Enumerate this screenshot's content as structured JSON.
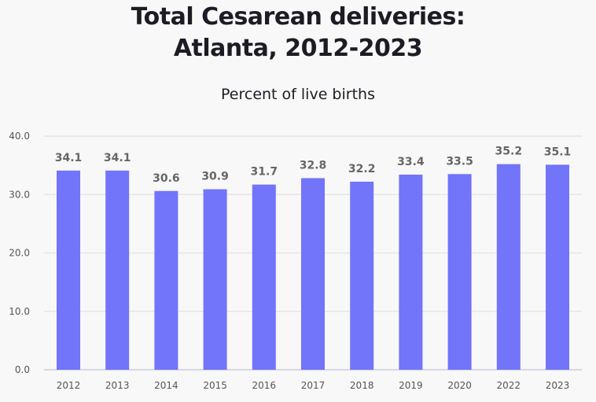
{
  "chart_data": {
    "type": "bar",
    "title_line1": "Total Cesarean deliveries:",
    "title_line2": "Atlanta, 2012-2023",
    "subtitle": "Percent of live births",
    "xlabel": "",
    "ylabel": "",
    "categories": [
      "2012",
      "2013",
      "2014",
      "2015",
      "2016",
      "2017",
      "2018",
      "2019",
      "2020",
      "2022",
      "2023"
    ],
    "values": [
      34.1,
      34.1,
      30.6,
      30.9,
      31.7,
      32.8,
      32.2,
      33.4,
      33.5,
      35.2,
      35.1
    ],
    "data_labels": [
      "34.1",
      "34.1",
      "30.6",
      "30.9",
      "31.7",
      "32.8",
      "32.2",
      "33.4",
      "33.5",
      "35.2",
      "35.1"
    ],
    "ylim": [
      0,
      40
    ],
    "yticks": [
      "0.0",
      "10.0",
      "20.0",
      "30.0",
      "40.0"
    ],
    "grid": true,
    "bar_color": "#7274fa"
  }
}
